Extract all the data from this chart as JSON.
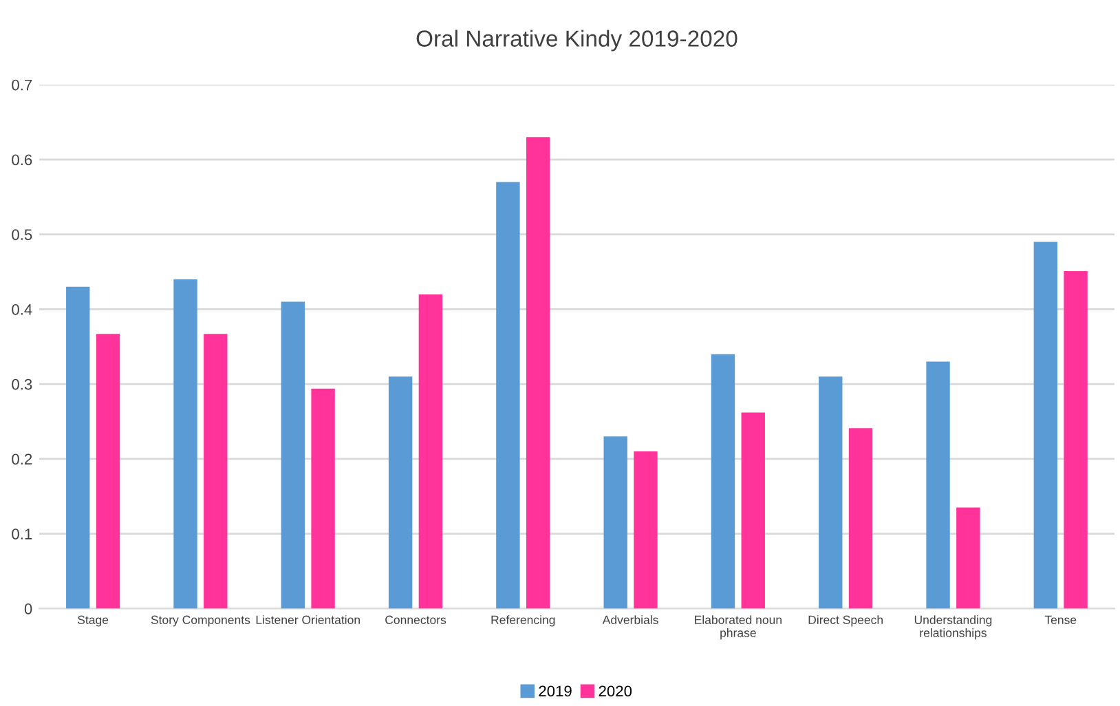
{
  "chart_data": {
    "type": "bar",
    "title": "Oral Narrative Kindy 2019-2020",
    "categories": [
      "Stage",
      "Story Components",
      "Listener Orientation",
      "Connectors",
      "Referencing",
      "Adverbials",
      "Elaborated noun\nphrase",
      "Direct Speech",
      "Understanding\nrelationships",
      "Tense"
    ],
    "series": [
      {
        "name": "2019",
        "color": "#5b9bd5",
        "values": [
          0.43,
          0.44,
          0.41,
          0.31,
          0.57,
          0.23,
          0.34,
          0.31,
          0.33,
          0.49
        ]
      },
      {
        "name": "2020",
        "color": "#ff3399",
        "values": [
          0.367,
          0.367,
          0.294,
          0.42,
          0.63,
          0.21,
          0.262,
          0.241,
          0.135,
          0.451
        ]
      }
    ],
    "ylim": [
      0,
      0.7
    ],
    "yticks": [
      0,
      0.1,
      0.2,
      0.3,
      0.4,
      0.5,
      0.6,
      0.7
    ],
    "grid": "y",
    "legend": "bottom"
  }
}
